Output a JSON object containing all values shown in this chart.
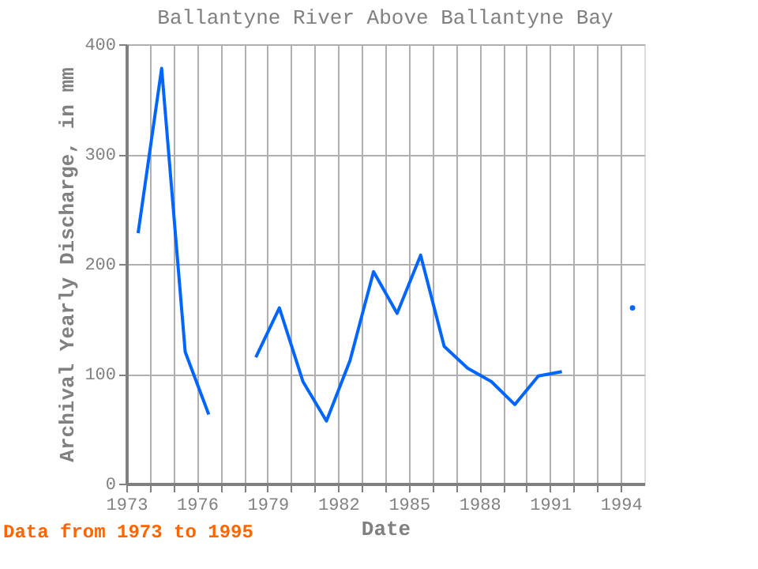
{
  "chart_data": {
    "type": "line",
    "title": "Ballantyne River Above Ballantyne Bay",
    "xlabel": "Date",
    "ylabel": "Archival Yearly Discharge, in mm",
    "x": [
      1973.5,
      1974.5,
      1975.5,
      1976.5,
      1977.5,
      1978.5,
      1979.5,
      1980.5,
      1981.5,
      1982.5,
      1983.5,
      1984.5,
      1985.5,
      1986.5,
      1987.5,
      1988.5,
      1989.5,
      1990.5,
      1991.5,
      1992.5,
      1993.5,
      1994.5
    ],
    "series": [
      {
        "color": "#0066ff",
        "values": [
          228,
          378,
          120,
          63,
          null,
          115,
          160,
          93,
          57,
          112,
          193,
          155,
          208,
          125,
          105,
          93,
          72,
          98,
          102,
          null,
          null,
          160
        ]
      }
    ],
    "xlim": [
      1973,
      1995
    ],
    "ylim": [
      0,
      400
    ],
    "xticks": [
      1973,
      {
        "value": 1974,
        "label": null
      },
      {
        "value": 1975,
        "label": null
      },
      1976,
      {
        "value": 1977,
        "label": null
      },
      {
        "value": 1978,
        "label": null
      },
      1979,
      {
        "value": 1980,
        "label": null
      },
      {
        "value": 1981,
        "label": null
      },
      1982,
      {
        "value": 1983,
        "label": null
      },
      {
        "value": 1984,
        "label": null
      },
      1985,
      {
        "value": 1986,
        "label": null
      },
      {
        "value": 1987,
        "label": null
      },
      1988,
      {
        "value": 1989,
        "label": null
      },
      {
        "value": 1990,
        "label": null
      },
      1991,
      {
        "value": 1992,
        "label": null
      },
      {
        "value": 1993,
        "label": null
      },
      1994
    ],
    "yticks": [
      0,
      100,
      200,
      300,
      400
    ],
    "grid": true,
    "annotations": [
      "Data from 1973 to 1995"
    ]
  }
}
